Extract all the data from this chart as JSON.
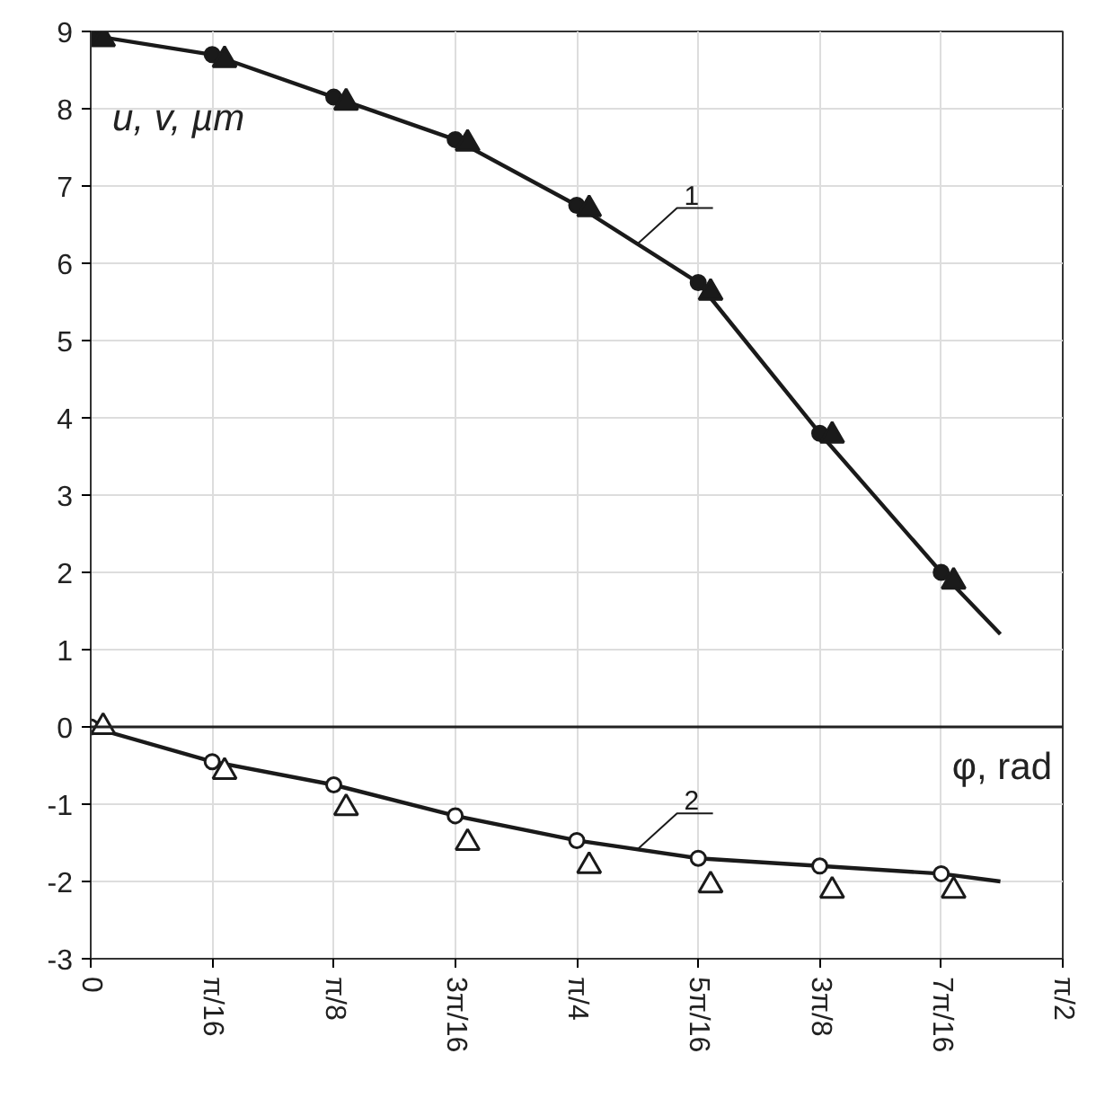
{
  "chart_data": {
    "type": "line",
    "xlabel": "φ, rad",
    "ylabel": "u, v, µm",
    "xlim": [
      0,
      1.5708
    ],
    "ylim": [
      -3,
      9
    ],
    "xticks": [
      0,
      {
        "value": 0.1963,
        "label": "π/16"
      },
      {
        "value": 0.3927,
        "label": "π/8"
      },
      {
        "value": 0.589,
        "label": "3π/16"
      },
      {
        "value": 0.7854,
        "label": "π/4"
      },
      {
        "value": 0.9817,
        "label": "5π/16"
      },
      {
        "value": 1.1781,
        "label": "3π/8"
      },
      {
        "value": 1.3744,
        "label": "7π/16"
      },
      {
        "value": 1.5708,
        "label": "π/2"
      }
    ],
    "yticks": [
      -3,
      -2,
      -1,
      0,
      1,
      2,
      3,
      4,
      5,
      6,
      7,
      8,
      9
    ],
    "grid": true,
    "line_style": "solid",
    "ref_lines": [
      {
        "axis": "y",
        "value": 0,
        "color": "#222222"
      }
    ],
    "series": [
      {
        "name": "1",
        "color": "#1a1a1a",
        "marker": "none",
        "x": [
          0,
          0.1963,
          0.3927,
          0.589,
          0.7854,
          0.9817,
          1.1781,
          1.3744,
          1.47
        ],
        "values": [
          8.95,
          8.7,
          8.15,
          7.6,
          6.75,
          5.75,
          3.8,
          2.0,
          1.2
        ]
      },
      {
        "name": "2",
        "color": "#1a1a1a",
        "marker": "none",
        "x": [
          0,
          0.1963,
          0.3927,
          0.589,
          0.7854,
          0.9817,
          1.1781,
          1.3744,
          1.47
        ],
        "values": [
          0,
          -0.45,
          -0.75,
          -1.15,
          -1.47,
          -1.7,
          -1.8,
          -1.9,
          -2.0
        ]
      },
      {
        "type": "scatter",
        "color": "#1a1a1a",
        "marker": "circle",
        "x": [
          0,
          0.1963,
          0.3927,
          0.589,
          0.7854,
          0.9817,
          1.1781,
          1.3744
        ],
        "values": [
          8.95,
          8.7,
          8.15,
          7.6,
          6.75,
          5.75,
          3.8,
          2.0
        ]
      },
      {
        "type": "scatter",
        "color": "#1a1a1a",
        "marker": "triangle",
        "x": [
          0.02,
          0.2163,
          0.4127,
          0.609,
          0.8054,
          1.0017,
          1.1981,
          1.3944
        ],
        "values": [
          8.9,
          8.63,
          8.08,
          7.55,
          6.7,
          5.62,
          3.77,
          1.88
        ]
      },
      {
        "type": "scatter",
        "color": "#ffffff",
        "marker": "circle",
        "x": [
          0,
          0.1963,
          0.3927,
          0.589,
          0.7854,
          0.9817,
          1.1781,
          1.3744
        ],
        "values": [
          0,
          -0.45,
          -0.75,
          -1.15,
          -1.47,
          -1.7,
          -1.8,
          -1.9
        ]
      },
      {
        "type": "scatter",
        "color": "#ffffff",
        "marker": "triangle",
        "x": [
          0.02,
          0.2163,
          0.4127,
          0.609,
          0.8054,
          1.0017,
          1.1981,
          1.3944
        ],
        "values": [
          0,
          -0.58,
          -1.05,
          -1.5,
          -1.8,
          -2.05,
          -2.12,
          -2.12
        ]
      }
    ]
  }
}
